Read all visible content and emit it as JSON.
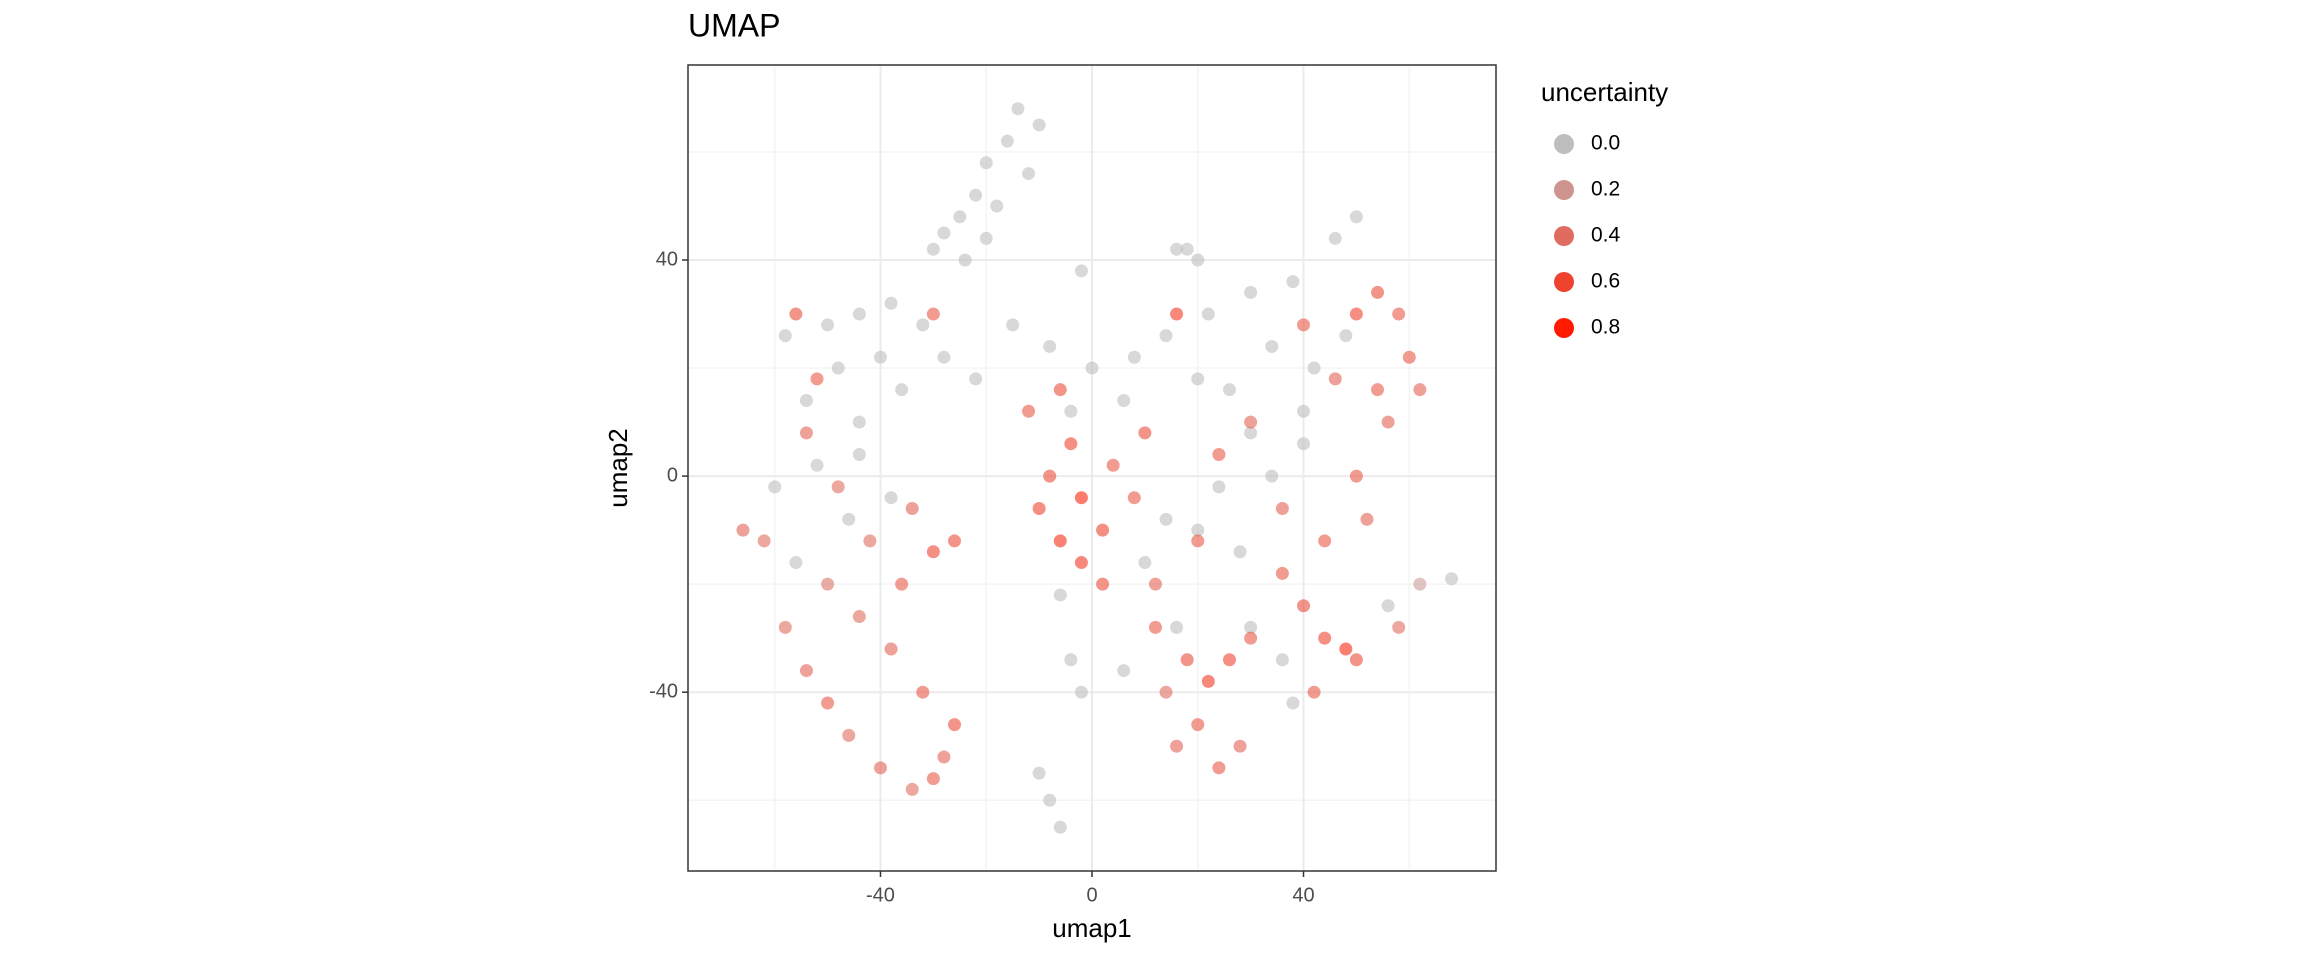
{
  "chart_data": {
    "type": "scatter",
    "title": "UMAP",
    "xlabel": "umap1",
    "ylabel": "umap2",
    "xlim": [
      -76.4,
      76.4
    ],
    "ylim": [
      -73.1,
      76.1
    ],
    "xticks": [
      -40,
      0,
      40
    ],
    "yticks": [
      -40,
      0,
      40
    ],
    "xminor": [
      -60,
      -20,
      20,
      60
    ],
    "yminor": [
      -60,
      -20,
      20,
      60
    ],
    "grid": true,
    "legend": {
      "title": "uncertainty",
      "position": "right",
      "ticks": [
        {
          "value": 0,
          "label": "0.0"
        },
        {
          "value": 0.2,
          "label": "0.2"
        },
        {
          "value": 0.4,
          "label": "0.4"
        },
        {
          "value": 0.6,
          "label": "0.6"
        },
        {
          "value": 0.8,
          "label": "0.8"
        }
      ]
    },
    "color_low": "#bebebe",
    "color_high": "#ff1a00",
    "colorlim": [
      0,
      0.8
    ],
    "x": [
      -14,
      -16,
      -20,
      -22,
      -25,
      -18,
      -28,
      -24,
      -30,
      -20,
      -12,
      -10,
      -58,
      -50,
      -44,
      -38,
      -32,
      -40,
      -48,
      -36,
      -28,
      -22,
      -54,
      -44,
      -15,
      -8,
      0,
      8,
      14,
      -4,
      6,
      20,
      22,
      30,
      38,
      46,
      50,
      34,
      42,
      26,
      48,
      40,
      30,
      18,
      -60,
      -52,
      -44,
      -38,
      -56,
      -46,
      -6,
      10,
      16,
      14,
      -4,
      -2,
      6,
      20,
      24,
      30,
      36,
      38,
      56,
      62,
      68,
      34,
      40,
      28,
      -10,
      -8,
      -6,
      16,
      20,
      -2,
      -58,
      -54,
      -50,
      -46,
      -40,
      -34,
      -30,
      -28,
      -26,
      -32,
      -38,
      -44,
      -50,
      -36,
      -30,
      -26,
      -42,
      -34,
      -48,
      -54,
      -52,
      -56,
      -66,
      -62,
      -10,
      -6,
      -2,
      2,
      -8,
      4,
      -2,
      -12,
      2,
      8,
      10,
      -4,
      12,
      18,
      22,
      26,
      20,
      16,
      24,
      28,
      14,
      30,
      12,
      36,
      40,
      44,
      48,
      44,
      52,
      50,
      56,
      54,
      60,
      62,
      50,
      54,
      58,
      46,
      40,
      30,
      24,
      36,
      42,
      50,
      58,
      16,
      -30,
      -6,
      20
    ],
    "y": [
      68,
      62,
      58,
      52,
      48,
      50,
      45,
      40,
      42,
      44,
      56,
      65,
      26,
      28,
      30,
      32,
      28,
      22,
      20,
      16,
      22,
      18,
      14,
      10,
      28,
      24,
      20,
      22,
      26,
      12,
      14,
      18,
      30,
      34,
      36,
      44,
      48,
      24,
      20,
      16,
      26,
      12,
      8,
      42,
      -2,
      2,
      4,
      -4,
      -16,
      -8,
      -22,
      -16,
      -28,
      -8,
      -34,
      -40,
      -36,
      -10,
      -2,
      -28,
      -34,
      -42,
      -24,
      -20,
      -19,
      0,
      6,
      -14,
      -55,
      -60,
      -65,
      42,
      40,
      38,
      -28,
      -36,
      -42,
      -48,
      -54,
      -58,
      -56,
      -52,
      -46,
      -40,
      -32,
      -26,
      -20,
      -20,
      -14,
      -12,
      -12,
      -6,
      -2,
      8,
      18,
      30,
      -10,
      -12,
      -6,
      -12,
      -16,
      -10,
      0,
      2,
      -4,
      12,
      -20,
      -4,
      8,
      6,
      -28,
      -34,
      -38,
      -34,
      -46,
      -50,
      -54,
      -50,
      -40,
      -30,
      -20,
      -18,
      -24,
      -30,
      -32,
      -12,
      -8,
      0,
      10,
      16,
      22,
      16,
      30,
      34,
      30,
      18,
      28,
      10,
      4,
      -6,
      -40,
      -34,
      -28,
      30,
      30,
      16,
      -12
    ],
    "uncertainty": [
      0,
      0,
      0,
      0,
      0,
      0,
      0,
      0,
      0,
      0,
      0,
      0,
      0,
      0,
      0,
      0,
      0,
      0,
      0,
      0,
      0,
      0,
      0,
      0,
      0,
      0,
      0,
      0,
      0,
      0,
      0,
      0,
      0,
      0,
      0,
      0,
      0,
      0,
      0,
      0,
      0,
      0,
      0,
      0,
      0,
      0,
      0,
      0,
      0,
      0,
      0,
      0,
      0,
      0,
      0,
      0,
      0,
      0,
      0,
      0,
      0,
      0,
      0,
      0.15,
      0,
      0,
      0,
      0,
      0,
      0,
      0,
      0,
      0,
      0,
      0.4,
      0.45,
      0.5,
      0.4,
      0.45,
      0.4,
      0.5,
      0.45,
      0.55,
      0.5,
      0.45,
      0.4,
      0.35,
      0.5,
      0.6,
      0.55,
      0.4,
      0.45,
      0.4,
      0.45,
      0.5,
      0.55,
      0.45,
      0.4,
      0.6,
      0.7,
      0.65,
      0.6,
      0.55,
      0.5,
      0.75,
      0.5,
      0.55,
      0.5,
      0.55,
      0.6,
      0.5,
      0.55,
      0.65,
      0.6,
      0.5,
      0.45,
      0.5,
      0.45,
      0.4,
      0.5,
      0.45,
      0.5,
      0.55,
      0.6,
      0.72,
      0.5,
      0.45,
      0.5,
      0.45,
      0.5,
      0.5,
      0.45,
      0.6,
      0.55,
      0.5,
      0.45,
      0.5,
      0.45,
      0.5,
      0.45,
      0.5,
      0.55,
      0.4,
      0.65,
      0.5,
      0.55,
      0.5
    ]
  }
}
